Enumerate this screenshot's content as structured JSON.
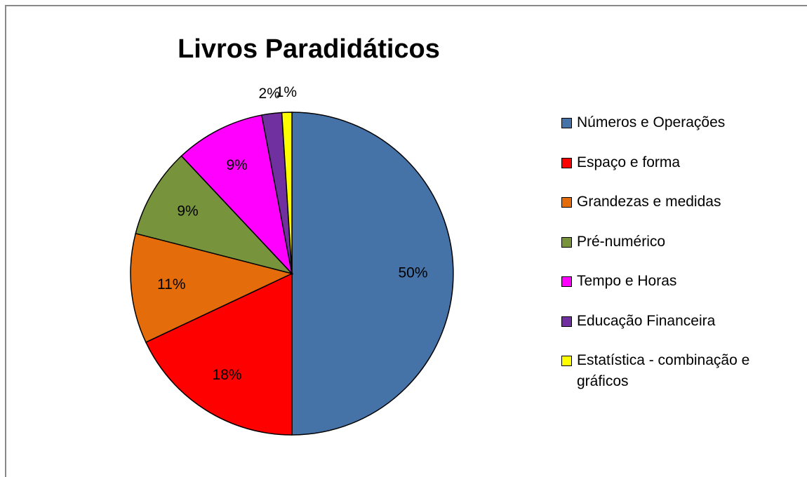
{
  "chart_data": {
    "type": "pie",
    "title": "Livros Paradidáticos",
    "categories": [
      "Números e Operações",
      "Espaço e forma",
      "Grandezas e medidas",
      "Pré-numérico",
      "Tempo e Horas",
      "Educação Financeira",
      "Estatística - combinação e gráficos"
    ],
    "values": [
      50,
      18,
      11,
      9,
      9,
      2,
      1
    ],
    "value_labels": [
      "50%",
      "18%",
      "11%",
      "9%",
      "9%",
      "2%",
      "1%"
    ],
    "colors": [
      "#4572a7",
      "#ff0000",
      "#e46c0a",
      "#77933c",
      "#ff00ff",
      "#7030a0",
      "#ffff00"
    ],
    "legend": "right"
  }
}
